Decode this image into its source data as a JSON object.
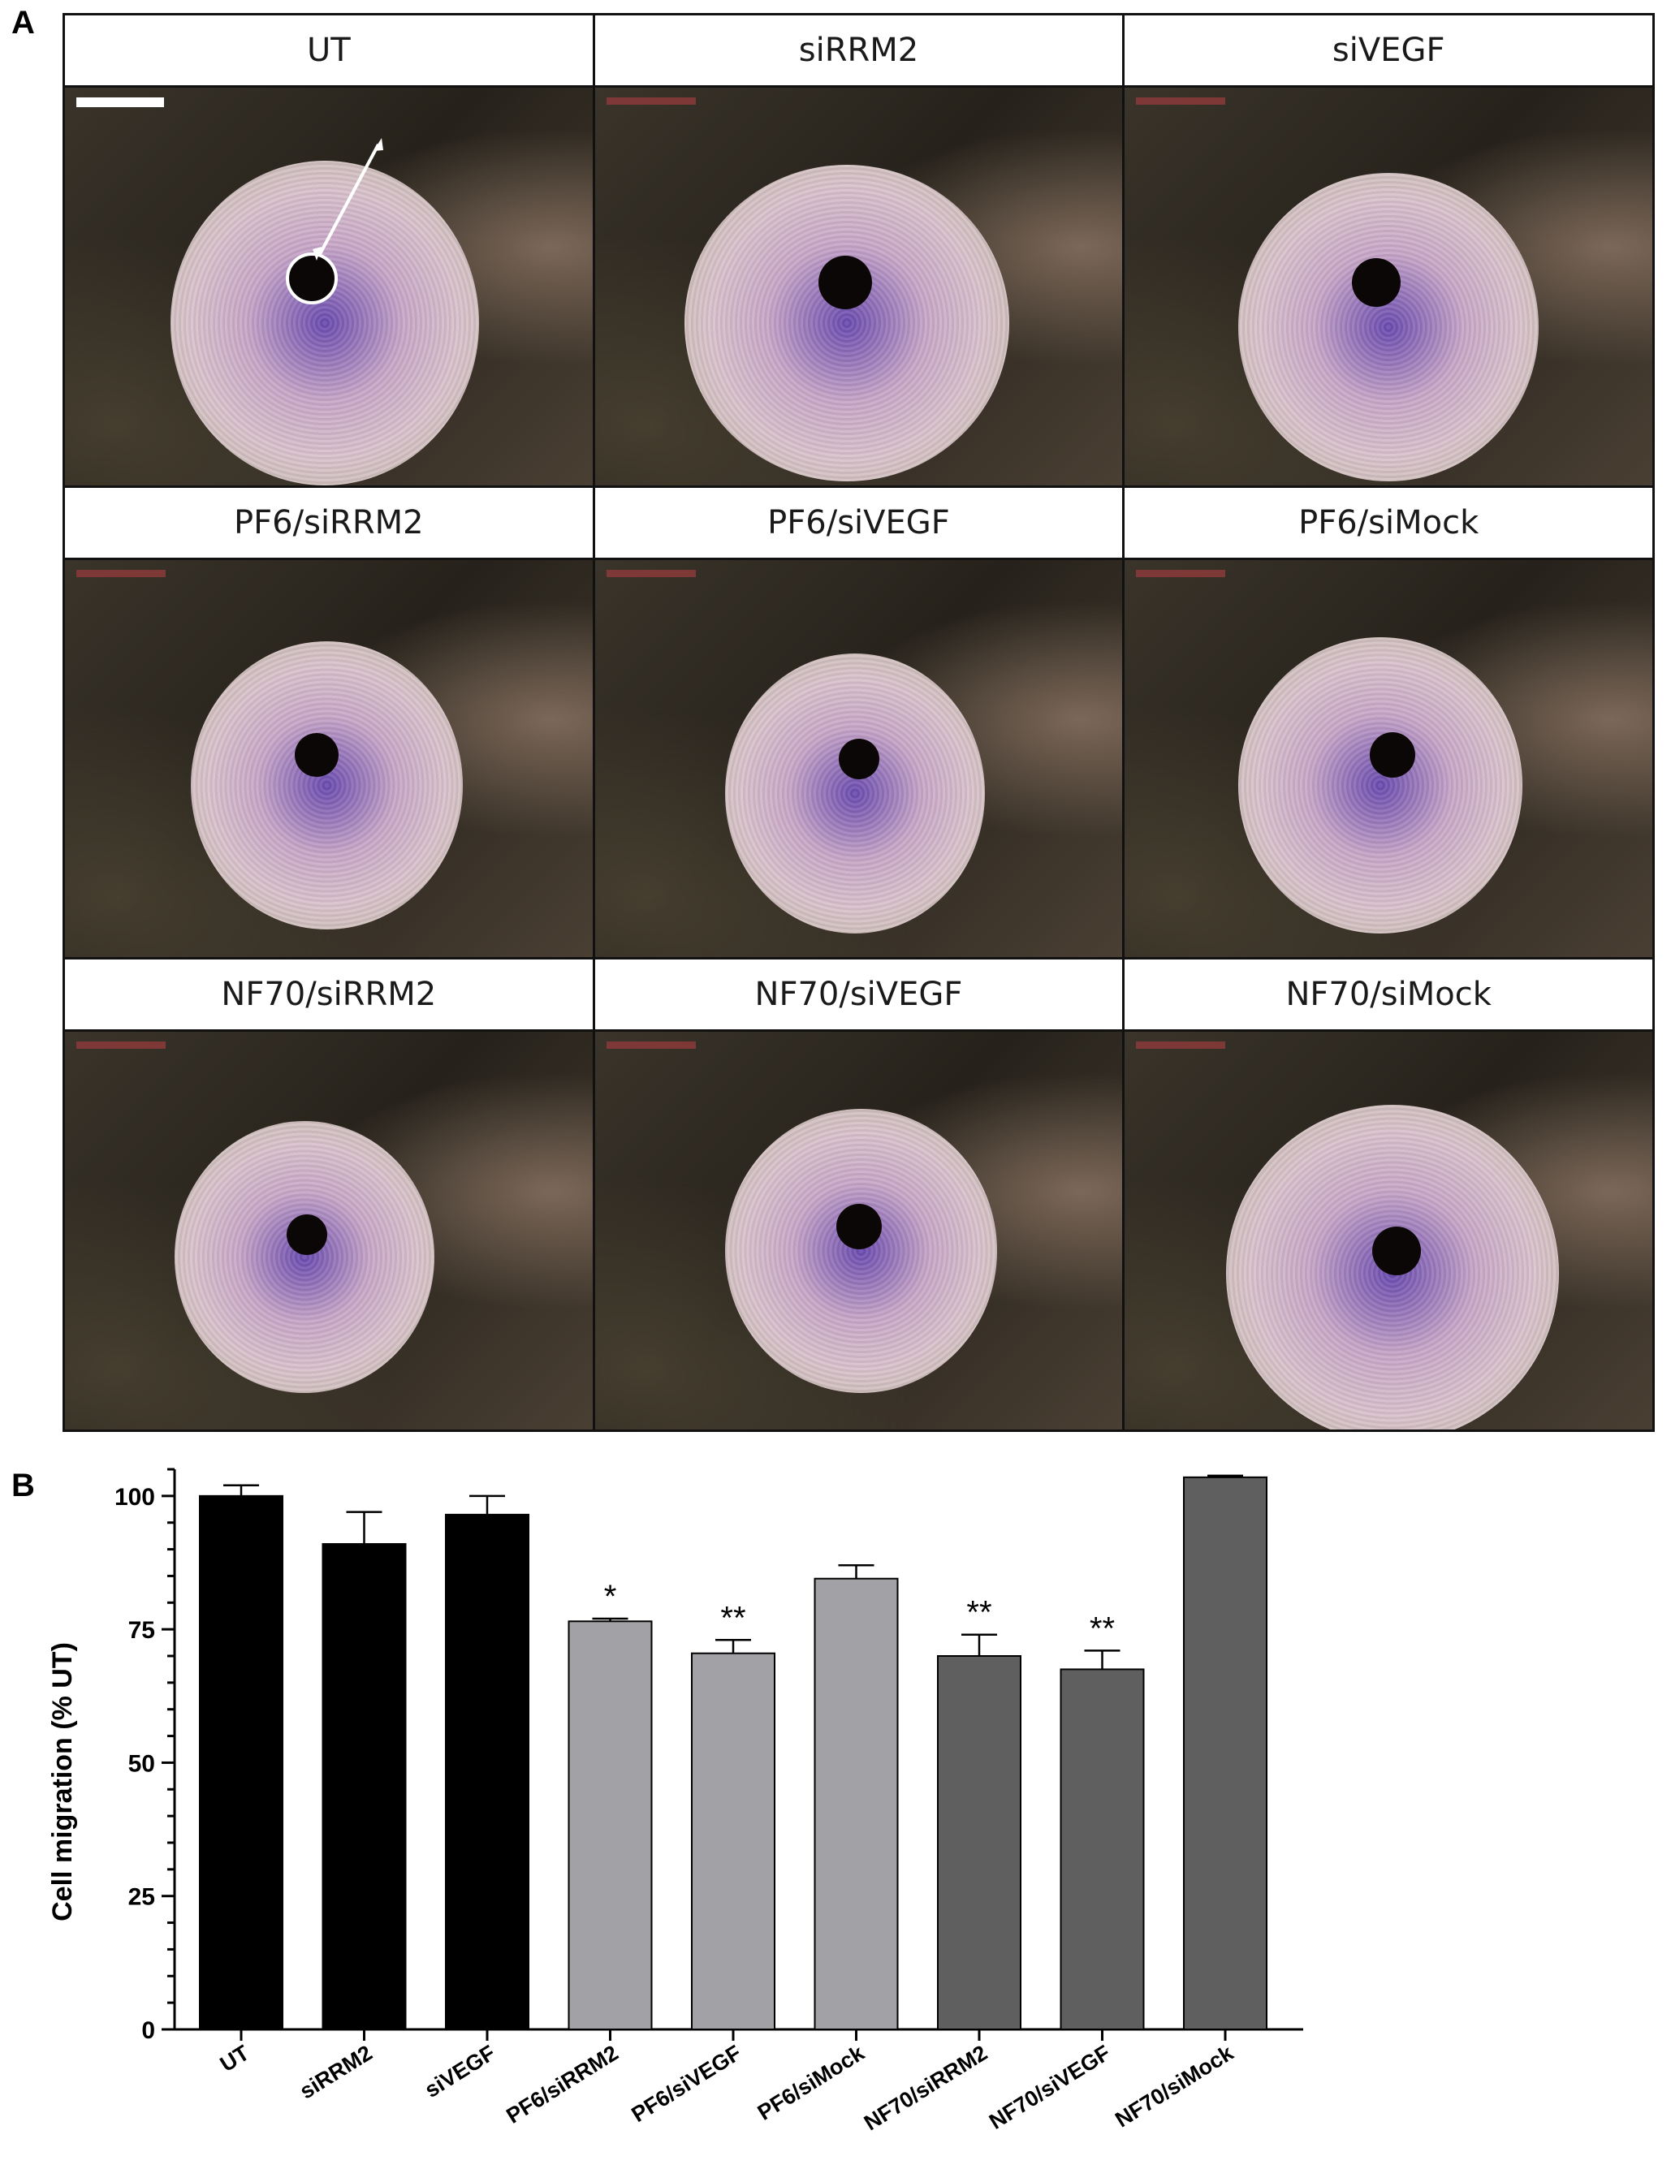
{
  "panel_a": {
    "letter": "A",
    "tiles": [
      {
        "label": "UT"
      },
      {
        "label": "siRRM2"
      },
      {
        "label": "siVEGF"
      },
      {
        "label": "PF6/siRRM2"
      },
      {
        "label": "PF6/siVEGF"
      },
      {
        "label": "PF6/siMock"
      },
      {
        "label": "NF70/siRRM2"
      },
      {
        "label": "NF70/siVEGF"
      },
      {
        "label": "NF70/siMock"
      }
    ]
  },
  "panel_b": {
    "letter": "B"
  },
  "chart_data": {
    "type": "bar",
    "title": "",
    "xlabel": "",
    "ylabel": "Cell migration (% UT)",
    "ylim": [
      0,
      105
    ],
    "yticks": [
      0,
      25,
      50,
      75,
      100
    ],
    "categories": [
      "UT",
      "siRRM2",
      "siVEGF",
      "PF6/siRRM2",
      "PF6/siVEGF",
      "PF6/siMock",
      "NF70/siRRM2",
      "NF70/siVEGF",
      "NF70/siMock"
    ],
    "values": [
      100,
      91,
      96.5,
      76.5,
      70.5,
      84.5,
      70,
      67.5,
      103.5
    ],
    "errors": [
      2,
      6,
      3.5,
      0.5,
      2.5,
      2.5,
      4,
      3.5,
      0.3
    ],
    "significance": [
      "",
      "",
      "",
      "*",
      "**",
      "",
      "**",
      "**",
      ""
    ],
    "bar_colors": [
      "#000000",
      "#000000",
      "#000000",
      "#a1a1a6",
      "#a1a1a6",
      "#a1a1a6",
      "#5f5f5f",
      "#5f5f5f",
      "#5f5f5f"
    ],
    "grid": false,
    "legend": "none"
  }
}
